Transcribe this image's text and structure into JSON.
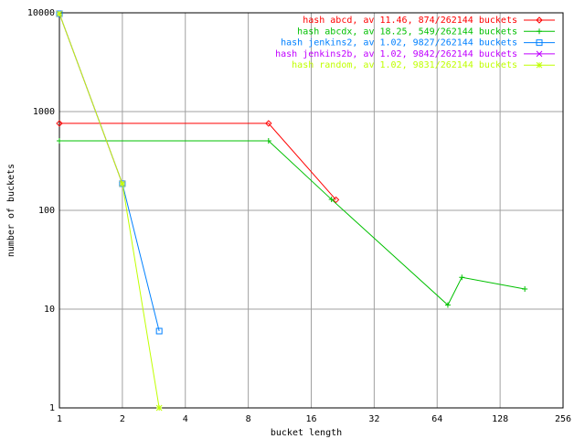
{
  "chart_data": {
    "type": "line",
    "x_label": "bucket length",
    "y_label": "number of buckets",
    "log_x": true,
    "log_y": true,
    "grid": true,
    "legend_position": "top-right",
    "xlim": [
      1,
      256
    ],
    "ylim": [
      1,
      10000
    ],
    "xticks": [
      1,
      2,
      4,
      8,
      16,
      32,
      64,
      128,
      256
    ],
    "yticks": [
      1,
      10,
      100,
      1000,
      10000
    ],
    "series": [
      {
        "name": "hash abcd, av 11.46, 874/262144 buckets",
        "color": "#ff0000",
        "marker": "dot",
        "x": [
          1,
          10,
          21
        ],
        "values": [
          759,
          759,
          128
        ]
      },
      {
        "name": "hash abcdx, av 18.25, 549/262144 buckets",
        "color": "#00c000",
        "marker": "plus",
        "x": [
          1,
          10,
          20,
          72,
          84,
          168
        ],
        "values": [
          505,
          505,
          129,
          11,
          21,
          16
        ]
      },
      {
        "name": "hash jenkins2, av 1.02, 9827/262144 buckets",
        "color": "#0080ff",
        "marker": "square",
        "x": [
          1,
          2,
          3
        ],
        "values": [
          9800,
          186,
          6
        ]
      },
      {
        "name": "hash jenkins2b, av 1.02, 9842/262144 buckets",
        "color": "#c000ff",
        "marker": "cross",
        "x": [
          1,
          2
        ],
        "values": [
          9800,
          186
        ]
      },
      {
        "name": "hash random, av 1.02, 9831/262144 buckets",
        "color": "#c0ff00",
        "marker": "star",
        "x": [
          1,
          2,
          3
        ],
        "values": [
          9800,
          186,
          1
        ]
      }
    ]
  }
}
